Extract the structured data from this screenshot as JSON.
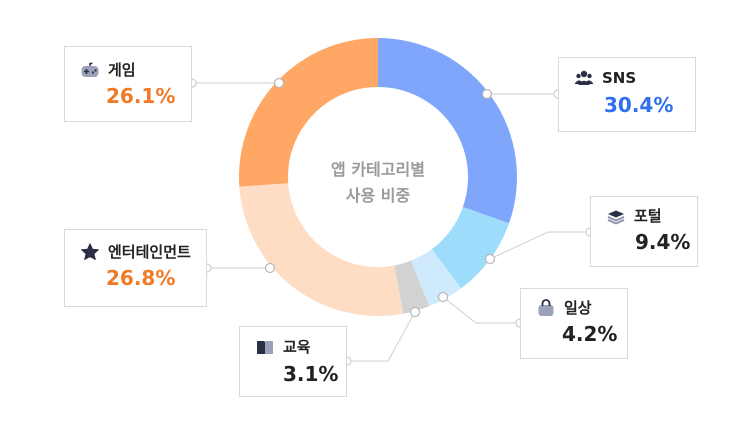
{
  "chart_data": {
    "type": "pie",
    "title": "앱 카테고리별",
    "subtitle": "사용 비중",
    "unit": "%",
    "slices": [
      {
        "label": "SNS",
        "value": 30.4,
        "color": "#7fa6fa",
        "text_color": "#2f6ff0",
        "icon": "users-icon"
      },
      {
        "label": "포털",
        "value": 9.4,
        "color": "#9edcfc",
        "text_color": "#222222",
        "icon": "layers-icon"
      },
      {
        "label": "일상",
        "value": 4.2,
        "color": "#cfeafc",
        "text_color": "#222222",
        "icon": "bag-icon"
      },
      {
        "label": "교육",
        "value": 3.1,
        "color": "#d2d2d2",
        "text_color": "#222222",
        "icon": "book-icon"
      },
      {
        "label": "엔터테인먼트",
        "value": 26.8,
        "color": "#ffdcc4",
        "text_color": "#f07a25",
        "icon": "star-icon"
      },
      {
        "label": "게임",
        "value": 26.1,
        "color": "#ffa865",
        "text_color": "#f07a25",
        "icon": "gamepad-icon"
      }
    ]
  }
}
